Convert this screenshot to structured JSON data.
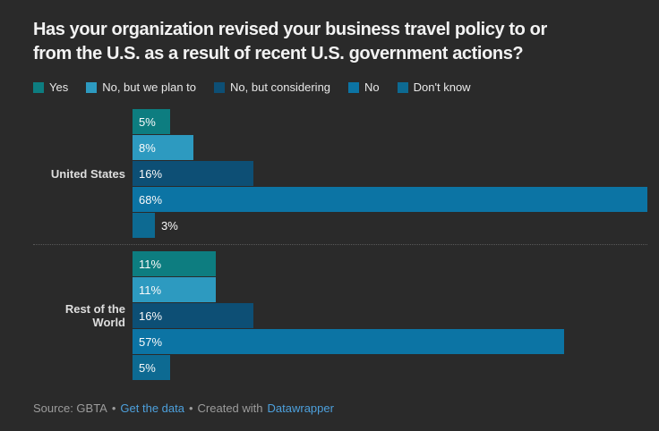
{
  "title": {
    "full": "Has your organization revised your business travel policy to or from the U.S. as a result of recent U.S. government actions?",
    "line1": "Has your organization revised your business travel policy to or",
    "line2": "from the U.S. as a result of recent U.S. government actions?"
  },
  "colors": {
    "background": "#2a2a2a",
    "title_text": "#f2f2f2",
    "category_label": "#dedede",
    "bar_value_label": "#fafafa",
    "footer_text": "#9c9c9c",
    "link": "#4da0dc",
    "separator_dotted": "#585858"
  },
  "chart_data": {
    "type": "bar",
    "orientation": "horizontal",
    "title": "Has your organization revised your business travel policy to or from the U.S. as a result of recent U.S. government actions?",
    "categories": [
      "United States",
      "Rest of the World"
    ],
    "series": [
      {
        "name": "Yes",
        "color": "#0d7d80",
        "values": [
          5,
          11
        ]
      },
      {
        "name": "No, but we plan to",
        "color": "#2d9ac0",
        "values": [
          8,
          11
        ]
      },
      {
        "name": "No, but considering",
        "color": "#0d4f75",
        "values": [
          16,
          16
        ]
      },
      {
        "name": "No",
        "color": "#0c74a4",
        "values": [
          68,
          57
        ]
      },
      {
        "name": "Don't know",
        "color": "#0d6a92",
        "values": [
          3,
          5
        ]
      }
    ],
    "value_suffix": "%",
    "value_labels": "inside-start, outside when bar too short",
    "xlim": [
      0,
      68
    ],
    "grid": false,
    "legend_position": "top"
  },
  "footer": {
    "source_label": "Source: GBTA",
    "bullet1": "•",
    "get_data_link": "Get the data",
    "bullet2": "•",
    "created_with": "Created with",
    "datawrapper_link": "Datawrapper"
  }
}
